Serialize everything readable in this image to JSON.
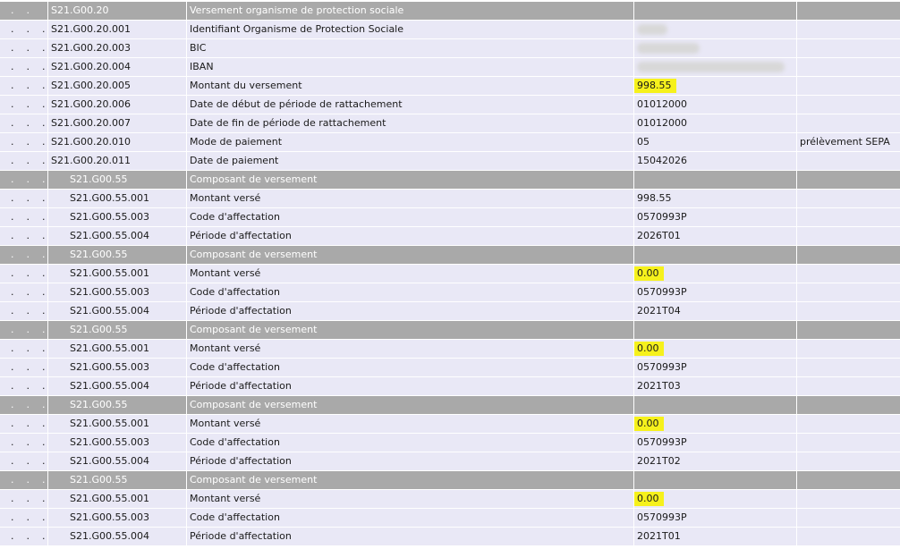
{
  "table": {
    "rows": [
      {
        "type": "group",
        "dots": ".    .",
        "code": "S21.G00.20",
        "label": "Versement organisme de protection sociale",
        "value": "",
        "extra": ""
      },
      {
        "type": "item",
        "dots": ".    .    .",
        "code": "S21.G00.20.001",
        "label": "Identifiant Organisme de Protection Sociale",
        "value": "",
        "redacted": "b1",
        "extra": ""
      },
      {
        "type": "item",
        "dots": ".    .    .",
        "code": "S21.G00.20.003",
        "label": "BIC",
        "value": "",
        "redacted": "b2",
        "extra": ""
      },
      {
        "type": "item",
        "dots": ".    .    .",
        "code": "S21.G00.20.004",
        "label": "IBAN",
        "value": "",
        "redacted": "b3",
        "extra": ""
      },
      {
        "type": "item",
        "dots": ".    .    .",
        "code": "S21.G00.20.005",
        "label": "Montant du versement",
        "value": "998.55",
        "highlight": true,
        "extra": ""
      },
      {
        "type": "item",
        "dots": ".    .    .",
        "code": "S21.G00.20.006",
        "label": "Date de début de période de rattachement",
        "value": "01012000",
        "extra": ""
      },
      {
        "type": "item",
        "dots": ".    .    .",
        "code": "S21.G00.20.007",
        "label": "Date de fin de période de rattachement",
        "value": "01012000",
        "extra": ""
      },
      {
        "type": "item",
        "dots": ".    .    .",
        "code": "S21.G00.20.010",
        "label": "Mode de paiement",
        "value": "05",
        "extra": "prélèvement SEPA"
      },
      {
        "type": "item",
        "dots": ".    .    .",
        "code": "S21.G00.20.011",
        "label": "Date de paiement",
        "value": "15042026",
        "extra": ""
      },
      {
        "type": "group sub",
        "dots": ".    .    .",
        "code": "S21.G00.55",
        "label": "Composant de versement",
        "value": "",
        "extra": ""
      },
      {
        "type": "item sub",
        "dots": ".    .    .    .",
        "code": "S21.G00.55.001",
        "label": "Montant versé",
        "value": "998.55",
        "extra": ""
      },
      {
        "type": "item sub",
        "dots": ".    .    .    .",
        "code": "S21.G00.55.003",
        "label": "Code d'affectation",
        "value": "0570993P",
        "extra": ""
      },
      {
        "type": "item sub",
        "dots": ".    .    .    .",
        "code": "S21.G00.55.004",
        "label": "Période d'affectation",
        "value": "2026T01",
        "extra": ""
      },
      {
        "type": "group sub",
        "dots": ".    .    .",
        "code": "S21.G00.55",
        "label": "Composant de versement",
        "value": "",
        "extra": ""
      },
      {
        "type": "item sub",
        "dots": ".    .    .    .",
        "code": "S21.G00.55.001",
        "label": "Montant versé",
        "value": "0.00",
        "highlight": true,
        "extra": ""
      },
      {
        "type": "item sub",
        "dots": ".    .    .    .",
        "code": "S21.G00.55.003",
        "label": "Code d'affectation",
        "value": "0570993P",
        "extra": ""
      },
      {
        "type": "item sub",
        "dots": ".    .    .    .",
        "code": "S21.G00.55.004",
        "label": "Période d'affectation",
        "value": "2021T04",
        "extra": ""
      },
      {
        "type": "group sub",
        "dots": ".    .    .",
        "code": "S21.G00.55",
        "label": "Composant de versement",
        "value": "",
        "extra": ""
      },
      {
        "type": "item sub",
        "dots": ".    .    .    .",
        "code": "S21.G00.55.001",
        "label": "Montant versé",
        "value": "0.00",
        "highlight": true,
        "extra": ""
      },
      {
        "type": "item sub",
        "dots": ".    .    .    .",
        "code": "S21.G00.55.003",
        "label": "Code d'affectation",
        "value": "0570993P",
        "extra": ""
      },
      {
        "type": "item sub",
        "dots": ".    .    .    .",
        "code": "S21.G00.55.004",
        "label": "Période d'affectation",
        "value": "2021T03",
        "extra": ""
      },
      {
        "type": "group sub",
        "dots": ".    .    .",
        "code": "S21.G00.55",
        "label": "Composant de versement",
        "value": "",
        "extra": ""
      },
      {
        "type": "item sub",
        "dots": ".    .    .    .",
        "code": "S21.G00.55.001",
        "label": "Montant versé",
        "value": "0.00",
        "highlight": true,
        "extra": ""
      },
      {
        "type": "item sub",
        "dots": ".    .    .    .",
        "code": "S21.G00.55.003",
        "label": "Code d'affectation",
        "value": "0570993P",
        "extra": ""
      },
      {
        "type": "item sub",
        "dots": ".    .    .    .",
        "code": "S21.G00.55.004",
        "label": "Période d'affectation",
        "value": "2021T02",
        "extra": ""
      },
      {
        "type": "group sub",
        "dots": ".    .    .",
        "code": "S21.G00.55",
        "label": "Composant de versement",
        "value": "",
        "extra": ""
      },
      {
        "type": "item sub",
        "dots": ".    .    .    .",
        "code": "S21.G00.55.001",
        "label": "Montant versé",
        "value": "0.00",
        "highlight": true,
        "extra": ""
      },
      {
        "type": "item sub",
        "dots": ".    .    .    .",
        "code": "S21.G00.55.003",
        "label": "Code d'affectation",
        "value": "0570993P",
        "extra": ""
      },
      {
        "type": "item sub",
        "dots": ".    .    .    .",
        "code": "S21.G00.55.004",
        "label": "Période d'affectation",
        "value": "2021T01",
        "extra": ""
      }
    ]
  },
  "colors": {
    "group_row_bg": "#a9a9a9",
    "item_row_bg": "#e9e8f6",
    "highlight": "#f6f11c"
  }
}
